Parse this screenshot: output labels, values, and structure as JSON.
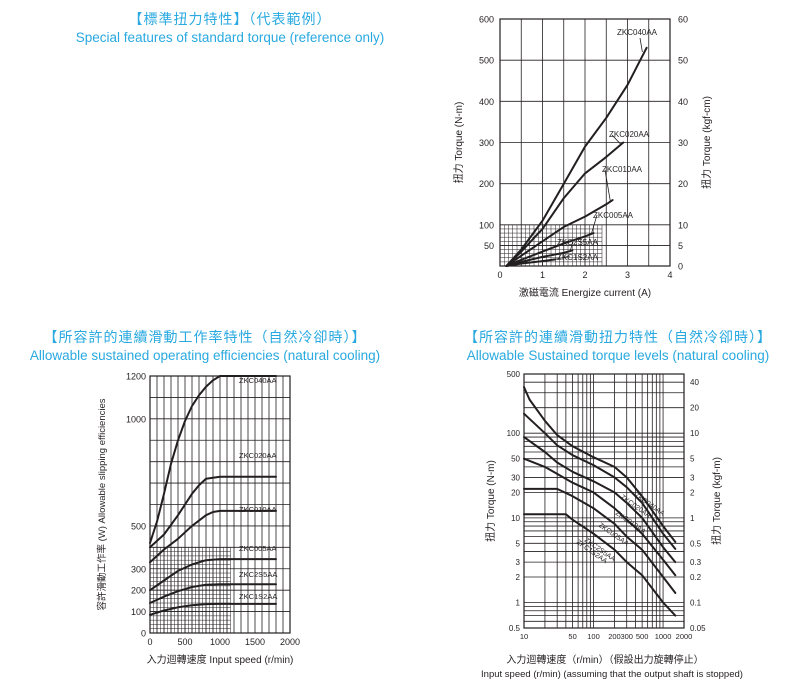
{
  "titles": {
    "t1_zh": "【標準扭力特性】（代表範例）",
    "t1_en": "Special features of standard torque  (reference only)",
    "t2_zh": "【所容許的連續滑動工作率特性（自然冷卻時）】",
    "t2_en": "Allowable sustained operating efficiencies (natural cooling)",
    "t3_zh": "【所容許的連續滑動扭力特性（自然冷卻時）】",
    "t3_en": "Allowable Sustained torque levels (natural cooling)"
  },
  "chart_data": [
    {
      "type": "line",
      "title": "【標準扭力特性】（代表範例） Special features of standard torque  (reference only)",
      "xlabel": "激磁電流 Energize current (A)",
      "ylabel": "扭力 Torque (N-m)",
      "y2label": "扭力 Torque (kgf-cm)",
      "xlim": [
        0,
        4
      ],
      "ylim": [
        0,
        600
      ],
      "y2lim": [
        0,
        60
      ],
      "xticks": [
        "0",
        "1",
        "2",
        "3",
        "4"
      ],
      "yticks": [
        "50",
        "100",
        "200",
        "300",
        "400",
        "500",
        "600"
      ],
      "y2ticks": [
        "0",
        "5",
        "10",
        "20",
        "30",
        "40",
        "50",
        "60"
      ],
      "grid": true,
      "hatched_region": {
        "x": [
          0,
          2.4
        ],
        "y": [
          0,
          100
        ]
      },
      "series": [
        {
          "name": "ZKC040AA",
          "x": [
            0.15,
            0.5,
            1.0,
            1.5,
            2.0,
            2.5,
            3.0,
            3.25,
            3.45
          ],
          "y": [
            0,
            40,
            110,
            200,
            290,
            360,
            440,
            490,
            530
          ]
        },
        {
          "name": "ZKC020AA",
          "x": [
            0.15,
            0.5,
            1.0,
            1.5,
            2.0,
            2.5,
            2.9
          ],
          "y": [
            0,
            35,
            90,
            165,
            225,
            265,
            300
          ]
        },
        {
          "name": "ZKC010AA",
          "x": [
            0.15,
            0.5,
            1.0,
            1.5,
            2.0,
            2.5,
            2.65
          ],
          "y": [
            0,
            25,
            60,
            95,
            120,
            150,
            160
          ]
        },
        {
          "name": "ZKC005AA",
          "x": [
            0.15,
            0.5,
            1.0,
            1.5,
            2.0,
            2.2
          ],
          "y": [
            0,
            15,
            35,
            55,
            72,
            80
          ]
        },
        {
          "name": "ZKC2S5AA",
          "x": [
            0.15,
            0.5,
            1.0,
            1.5,
            1.7
          ],
          "y": [
            0,
            10,
            22,
            32,
            38
          ]
        },
        {
          "name": "ZKC1S2AA",
          "x": [
            0.15,
            0.5,
            1.0,
            1.3
          ],
          "y": [
            0,
            6,
            12,
            16
          ]
        }
      ]
    },
    {
      "type": "line",
      "title": "【所容許的連續滑動工作率特性（自然冷卻時）】 Allowable sustained operating efficiencies (natural cooling)",
      "xlabel": "入力迴轉速度 Input speed (r/min)",
      "ylabel": "容許滑動工作率 (W) Allowable slipping efficiencies",
      "xlim": [
        0,
        2000
      ],
      "ylim": [
        0,
        1200
      ],
      "xticks": [
        "0",
        "500",
        "1000",
        "1500",
        "2000"
      ],
      "yticks": [
        "0",
        "100",
        "200",
        "300",
        "500",
        "1000",
        "1200"
      ],
      "grid": true,
      "hatched_region": {
        "x": [
          0,
          1150
        ],
        "y": [
          0,
          400
        ]
      },
      "series": [
        {
          "name": "ZKC040AA",
          "x": [
            0,
            100,
            200,
            300,
            400,
            500,
            600,
            700,
            800,
            900,
            1000,
            1800
          ],
          "y": [
            420,
            520,
            650,
            790,
            900,
            990,
            1060,
            1110,
            1150,
            1180,
            1200,
            1200
          ]
        },
        {
          "name": "ZKC020AA",
          "x": [
            0,
            200,
            400,
            500,
            600,
            700,
            800,
            1000,
            1800
          ],
          "y": [
            400,
            460,
            550,
            600,
            650,
            690,
            720,
            730,
            730
          ]
        },
        {
          "name": "ZKC010AA",
          "x": [
            0,
            200,
            400,
            500,
            600,
            700,
            800,
            900,
            1000,
            1800
          ],
          "y": [
            330,
            390,
            440,
            470,
            500,
            525,
            550,
            565,
            570,
            570
          ]
        },
        {
          "name": "ZKC005AA",
          "x": [
            0,
            200,
            400,
            600,
            800,
            1000,
            1800
          ],
          "y": [
            200,
            245,
            290,
            320,
            340,
            345,
            345
          ]
        },
        {
          "name": "ZKC2S5AA",
          "x": [
            0,
            200,
            400,
            600,
            800,
            1000,
            1800
          ],
          "y": [
            140,
            170,
            195,
            215,
            225,
            228,
            228
          ]
        },
        {
          "name": "ZKC1S2AA",
          "x": [
            0,
            200,
            400,
            600,
            800,
            1000,
            1800
          ],
          "y": [
            85,
            105,
            120,
            130,
            135,
            136,
            136
          ]
        }
      ]
    },
    {
      "type": "line",
      "title": "【所容許的連續滑動扭力特性（自然冷卻時）】 Allowable Sustained torque levels (natural cooling)",
      "xlabel": "入力迴轉速度（r/min）（假設出力旋轉停止）",
      "xlabel2": "Input speed (r/min)  (assuming that the output shaft is stopped)",
      "ylabel": "扭力 Torque (N-m)",
      "y2label": "扭力 Torque (kgf-m)",
      "xscale": "log",
      "yscale": "log",
      "xlim": [
        10,
        2000
      ],
      "ylim": [
        0.5,
        500
      ],
      "y2lim": [
        0.05,
        50
      ],
      "xticks": [
        "10",
        "50",
        "100",
        "200",
        "300",
        "500",
        "1000",
        "2000"
      ],
      "yticks": [
        "0.5",
        "1",
        "2",
        "3",
        "5",
        "10",
        "20",
        "30",
        "50",
        "100",
        "500"
      ],
      "y2ticks": [
        "0.05",
        "0.1",
        "0.2",
        "0.3",
        "0.5",
        "1",
        "2",
        "3",
        "5",
        "10",
        "20",
        "40"
      ],
      "grid": true,
      "series": [
        {
          "name": "ZKC040AA",
          "x": [
            10,
            12,
            20,
            30,
            50,
            100,
            200,
            300,
            500,
            1000,
            1500
          ],
          "y": [
            350,
            250,
            140,
            95,
            70,
            52,
            40,
            30,
            18,
            8,
            5.2
          ]
        },
        {
          "name": "ZKC020AA",
          "x": [
            10,
            20,
            30,
            50,
            100,
            200,
            300,
            500,
            1000,
            1500
          ],
          "y": [
            170,
            100,
            72,
            55,
            42,
            30,
            23,
            15,
            6.5,
            4.3
          ]
        },
        {
          "name": "ZKC010AA",
          "x": [
            10,
            20,
            30,
            50,
            100,
            200,
            300,
            500,
            1000,
            1500
          ],
          "y": [
            90,
            60,
            45,
            35,
            27,
            20,
            15,
            10,
            4.5,
            3
          ]
        },
        {
          "name": "ZKC005AA",
          "x": [
            10,
            20,
            30,
            50,
            100,
            200,
            300,
            500,
            1000,
            1500
          ],
          "y": [
            50,
            40,
            33,
            26,
            20,
            13,
            9.5,
            6.5,
            3.2,
            2.1
          ]
        },
        {
          "name": "ZKC2S5AA",
          "x": [
            10,
            30,
            50,
            100,
            200,
            300,
            500,
            1000,
            1500
          ],
          "y": [
            22,
            22,
            18,
            13,
            8.5,
            6,
            4.2,
            2,
            1.3
          ]
        },
        {
          "name": "ZKC1S2AA",
          "x": [
            10,
            40,
            50,
            100,
            200,
            300,
            500,
            1000,
            1500
          ],
          "y": [
            11,
            11,
            9.5,
            6.5,
            4.2,
            3,
            2.1,
            1,
            0.7
          ]
        }
      ]
    }
  ]
}
